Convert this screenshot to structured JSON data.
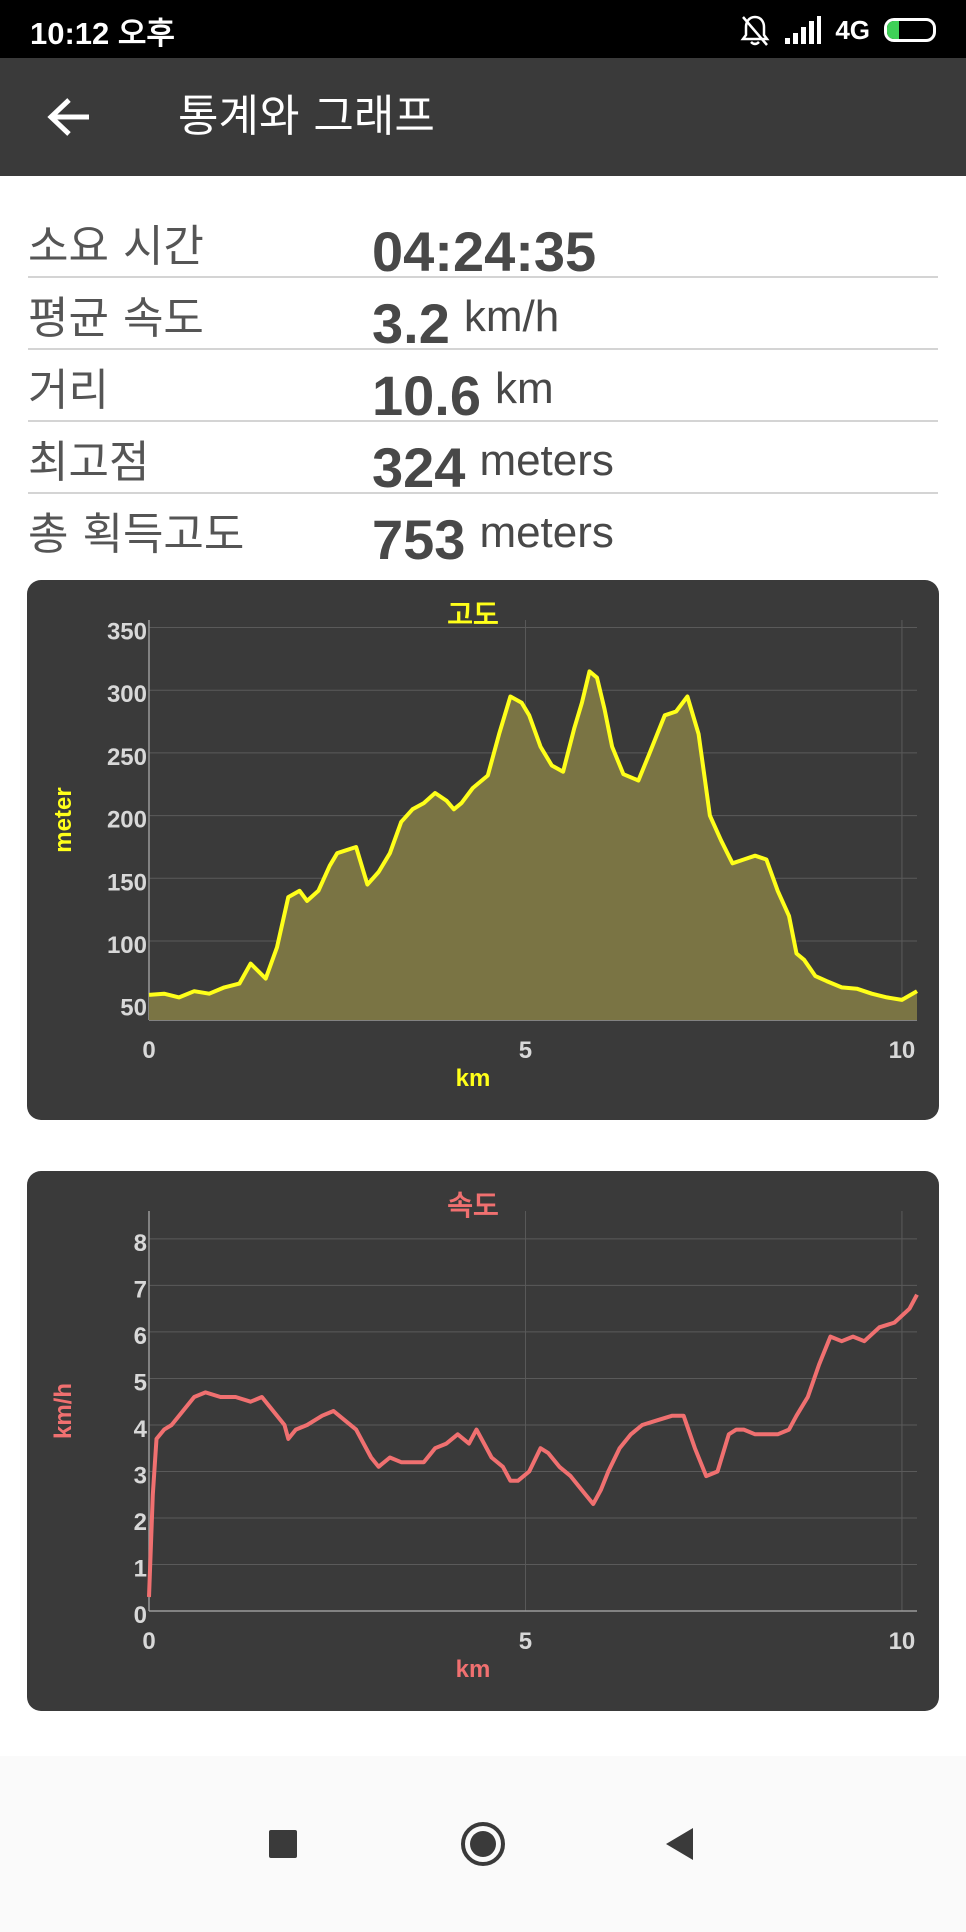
{
  "status_bar": {
    "time": "10:12 오후",
    "network": "4G",
    "battery": "27",
    "battery_level": 0.27
  },
  "app_bar": {
    "title": "통계와 그래프"
  },
  "stats": [
    {
      "label": "소요 시간",
      "value": "04:24:35",
      "unit": ""
    },
    {
      "label": "평균 속도",
      "value": "3.2",
      "unit": "km/h"
    },
    {
      "label": "거리",
      "value": "10.6",
      "unit": "km"
    },
    {
      "label": "최고점",
      "value": "324",
      "unit": "meters"
    },
    {
      "label": "총 획득고도",
      "value": "753",
      "unit": "meters"
    }
  ],
  "chart_data": [
    {
      "type": "area",
      "title": "고도",
      "xlabel": "km",
      "ylabel": "meter",
      "color": "#ffff1a",
      "fill": "#7a7444",
      "xlim": [
        0,
        10.2
      ],
      "ylim": [
        37,
        356
      ],
      "xticks": [
        0,
        5,
        10
      ],
      "yticks": [
        50,
        100,
        150,
        200,
        250,
        300,
        350
      ],
      "grid": true,
      "x": [
        0,
        0.2,
        0.4,
        0.6,
        0.8,
        1.0,
        1.2,
        1.35,
        1.55,
        1.7,
        1.85,
        2.0,
        2.1,
        2.25,
        2.4,
        2.5,
        2.6,
        2.75,
        2.9,
        3.05,
        3.2,
        3.35,
        3.5,
        3.65,
        3.8,
        3.95,
        4.05,
        4.15,
        4.3,
        4.5,
        4.65,
        4.8,
        4.95,
        5.05,
        5.2,
        5.35,
        5.5,
        5.65,
        5.75,
        5.85,
        5.95,
        6.05,
        6.15,
        6.3,
        6.5,
        6.65,
        6.75,
        6.85,
        7.0,
        7.15,
        7.3,
        7.45,
        7.6,
        7.75,
        7.9,
        8.05,
        8.2,
        8.35,
        8.5,
        8.6,
        8.7,
        8.85,
        9.0,
        9.2,
        9.4,
        9.6,
        9.8,
        10.0,
        10.2
      ],
      "y": [
        57,
        58,
        55,
        60,
        58,
        63,
        66,
        82,
        70,
        95,
        135,
        140,
        132,
        140,
        160,
        170,
        172,
        175,
        145,
        155,
        170,
        195,
        205,
        210,
        218,
        212,
        205,
        210,
        222,
        232,
        265,
        295,
        290,
        280,
        255,
        240,
        235,
        270,
        290,
        315,
        310,
        285,
        255,
        233,
        228,
        250,
        265,
        280,
        283,
        295,
        265,
        200,
        180,
        162,
        165,
        168,
        165,
        140,
        120,
        90,
        85,
        72,
        68,
        63,
        62,
        58,
        55,
        53,
        60
      ]
    },
    {
      "type": "line",
      "title": "속도",
      "xlabel": "km",
      "ylabel": "km/h",
      "color": "#f07070",
      "xlim": [
        0,
        10.2
      ],
      "ylim": [
        0,
        8.6
      ],
      "xticks": [
        0,
        5,
        10
      ],
      "yticks": [
        0,
        1,
        2,
        3,
        4,
        5,
        6,
        7,
        8
      ],
      "grid": true,
      "x": [
        0,
        0.05,
        0.1,
        0.2,
        0.3,
        0.45,
        0.6,
        0.75,
        0.95,
        1.15,
        1.35,
        1.5,
        1.65,
        1.8,
        1.85,
        1.95,
        2.1,
        2.3,
        2.45,
        2.6,
        2.75,
        2.85,
        2.95,
        3.05,
        3.2,
        3.35,
        3.5,
        3.65,
        3.8,
        3.95,
        4.1,
        4.25,
        4.35,
        4.45,
        4.55,
        4.7,
        4.8,
        4.9,
        5.05,
        5.2,
        5.3,
        5.45,
        5.6,
        5.75,
        5.9,
        6.0,
        6.1,
        6.25,
        6.4,
        6.55,
        6.75,
        6.95,
        7.1,
        7.25,
        7.4,
        7.55,
        7.7,
        7.8,
        7.9,
        8.05,
        8.2,
        8.35,
        8.5,
        8.6,
        8.75,
        8.9,
        9.05,
        9.2,
        9.35,
        9.5,
        9.7,
        9.9,
        10.1,
        10.2
      ],
      "y": [
        0.3,
        2.5,
        3.7,
        3.9,
        4.0,
        4.3,
        4.6,
        4.7,
        4.6,
        4.6,
        4.5,
        4.6,
        4.3,
        4.0,
        3.7,
        3.9,
        4.0,
        4.2,
        4.3,
        4.1,
        3.9,
        3.6,
        3.3,
        3.1,
        3.3,
        3.2,
        3.2,
        3.2,
        3.5,
        3.6,
        3.8,
        3.6,
        3.9,
        3.6,
        3.3,
        3.1,
        2.8,
        2.8,
        3.0,
        3.5,
        3.4,
        3.1,
        2.9,
        2.6,
        2.3,
        2.6,
        3.0,
        3.5,
        3.8,
        4.0,
        4.1,
        4.2,
        4.2,
        3.5,
        2.9,
        3.0,
        3.8,
        3.9,
        3.9,
        3.8,
        3.8,
        3.8,
        3.9,
        4.2,
        4.6,
        5.3,
        5.9,
        5.8,
        5.9,
        5.8,
        6.1,
        6.2,
        6.5,
        6.8
      ]
    }
  ]
}
